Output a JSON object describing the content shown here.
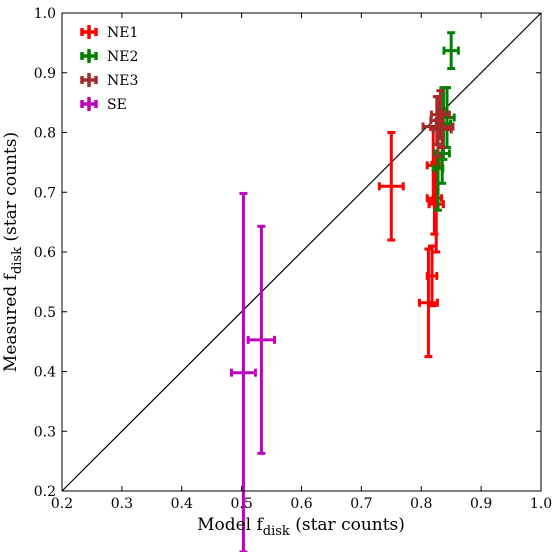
{
  "chart_data": {
    "type": "scatter",
    "title": "",
    "xlabel": {
      "main": "Model f",
      "sub": "disk",
      "rest": " (star counts)"
    },
    "ylabel": {
      "main": "Measured f",
      "sub": "disk",
      "rest": " (star counts)"
    },
    "xlim": [
      0.2,
      1.0
    ],
    "ylim": [
      0.2,
      1.0
    ],
    "xticks": [
      "0.2",
      "0.3",
      "0.4",
      "0.5",
      "0.6",
      "0.7",
      "0.8",
      "0.9",
      "1.0"
    ],
    "yticks": [
      "0.2",
      "0.3",
      "0.4",
      "0.5",
      "0.6",
      "0.7",
      "0.8",
      "0.9",
      "1.0"
    ],
    "grid": false,
    "legend_position": "top-left",
    "reference_line": {
      "x": [
        0.2,
        1.0
      ],
      "y": [
        0.2,
        1.0
      ],
      "color": "#000000"
    },
    "series": [
      {
        "name": "NE1",
        "color": "#ff0000",
        "points": [
          {
            "x": 0.75,
            "y": 0.71,
            "xerr": 0.02,
            "yerr": 0.09
          },
          {
            "x": 0.82,
            "y": 0.745,
            "xerr": 0.01,
            "yerr": 0.06
          },
          {
            "x": 0.822,
            "y": 0.69,
            "xerr": 0.012,
            "yerr": 0.06
          },
          {
            "x": 0.825,
            "y": 0.68,
            "xerr": 0.012,
            "yerr": 0.08
          },
          {
            "x": 0.812,
            "y": 0.515,
            "xerr": 0.015,
            "yerr": 0.09
          },
          {
            "x": 0.818,
            "y": 0.56,
            "xerr": 0.008,
            "yerr": 0.05
          }
        ]
      },
      {
        "name": "NE2",
        "color": "#008000",
        "points": [
          {
            "x": 0.85,
            "y": 0.937,
            "xerr": 0.012,
            "yerr": 0.03
          },
          {
            "x": 0.843,
            "y": 0.825,
            "xerr": 0.012,
            "yerr": 0.05
          },
          {
            "x": 0.837,
            "y": 0.815,
            "xerr": 0.012,
            "yerr": 0.06
          },
          {
            "x": 0.835,
            "y": 0.765,
            "xerr": 0.012,
            "yerr": 0.05
          },
          {
            "x": 0.828,
            "y": 0.74,
            "xerr": 0.008,
            "yerr": 0.07
          }
        ]
      },
      {
        "name": "NE3",
        "color": "#a52a2a",
        "points": [
          {
            "x": 0.828,
            "y": 0.81,
            "xerr": 0.025,
            "yerr": 0.05
          },
          {
            "x": 0.832,
            "y": 0.83,
            "xerr": 0.015,
            "yerr": 0.04
          },
          {
            "x": 0.835,
            "y": 0.805,
            "xerr": 0.015,
            "yerr": 0.03
          },
          {
            "x": 0.826,
            "y": 0.82,
            "xerr": 0.01,
            "yerr": 0.04
          }
        ]
      },
      {
        "name": "SE",
        "color": "#bf00bf",
        "points": [
          {
            "x": 0.503,
            "y": 0.398,
            "xerr": 0.02,
            "yerr": 0.3
          },
          {
            "x": 0.533,
            "y": 0.453,
            "xerr": 0.022,
            "yerr": 0.19
          }
        ]
      }
    ]
  }
}
